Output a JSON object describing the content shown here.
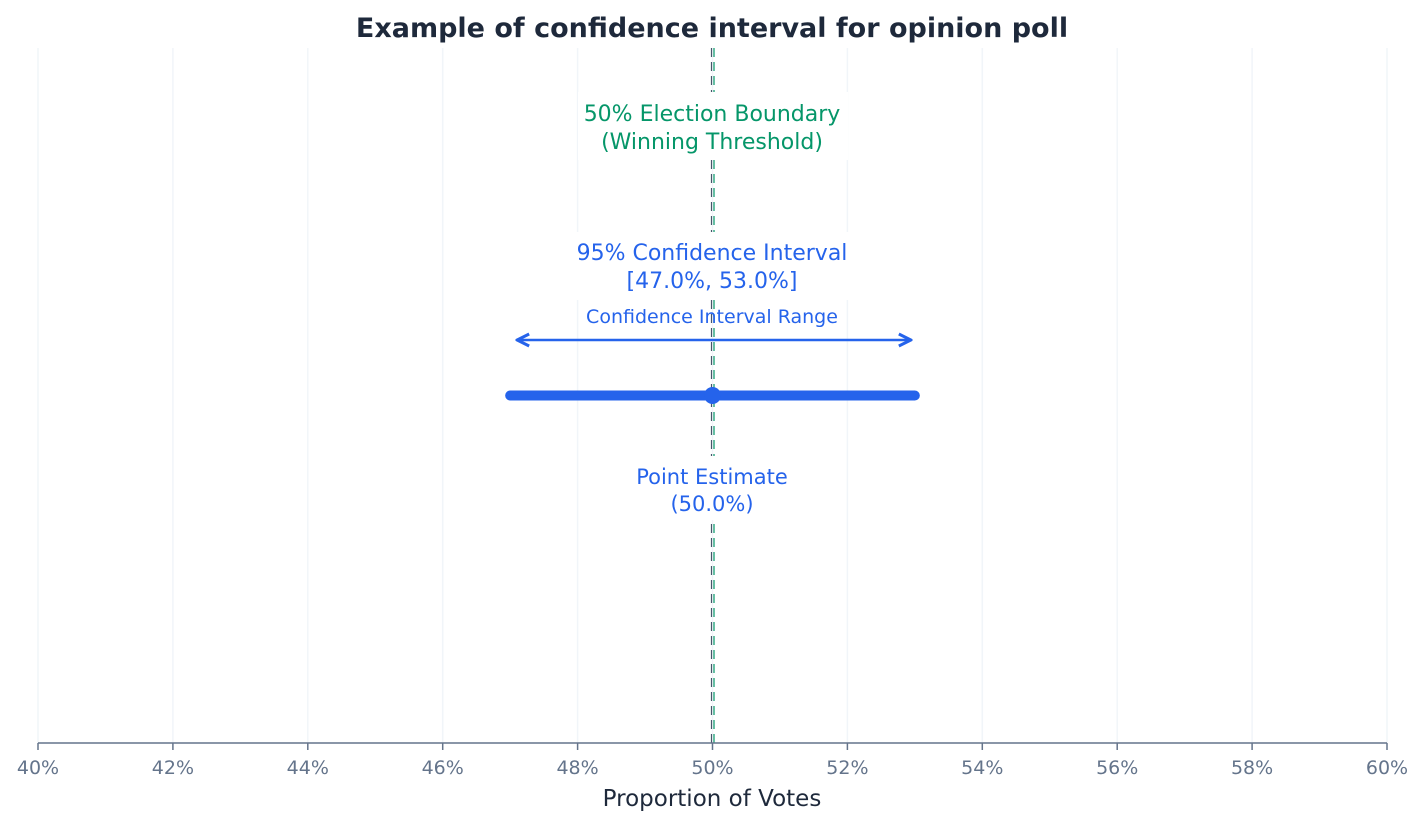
{
  "chart_data": {
    "type": "errorbar",
    "title": "Example of confidence interval for opinion poll",
    "xlabel": "Proportion of Votes",
    "ylabel": "",
    "xlim": [
      40,
      60
    ],
    "xticks": [
      40,
      42,
      44,
      46,
      48,
      50,
      52,
      54,
      56,
      58,
      60
    ],
    "xtick_labels": [
      "40%",
      "42%",
      "44%",
      "46%",
      "48%",
      "50%",
      "52%",
      "54%",
      "56%",
      "58%",
      "60%"
    ],
    "grid": "vertical",
    "point_estimate": 50.0,
    "ci_lower": 47.0,
    "ci_upper": 53.0,
    "threshold": 50,
    "annotations": {
      "threshold_line1": "50% Election Boundary",
      "threshold_line2": "(Winning Threshold)",
      "ci_line1": "95% Confidence Interval",
      "ci_line2": "[47.0%, 53.0%]",
      "range_label": "Confidence Interval Range",
      "point_line1": "Point Estimate",
      "point_line2": "(50.0%)"
    },
    "colors": {
      "interval": "#2563eb",
      "threshold": "#059669",
      "threshold_secondary": "#475569",
      "axis": "#64748b",
      "grid": "#f1f5f9",
      "title": "#1e293b"
    }
  }
}
